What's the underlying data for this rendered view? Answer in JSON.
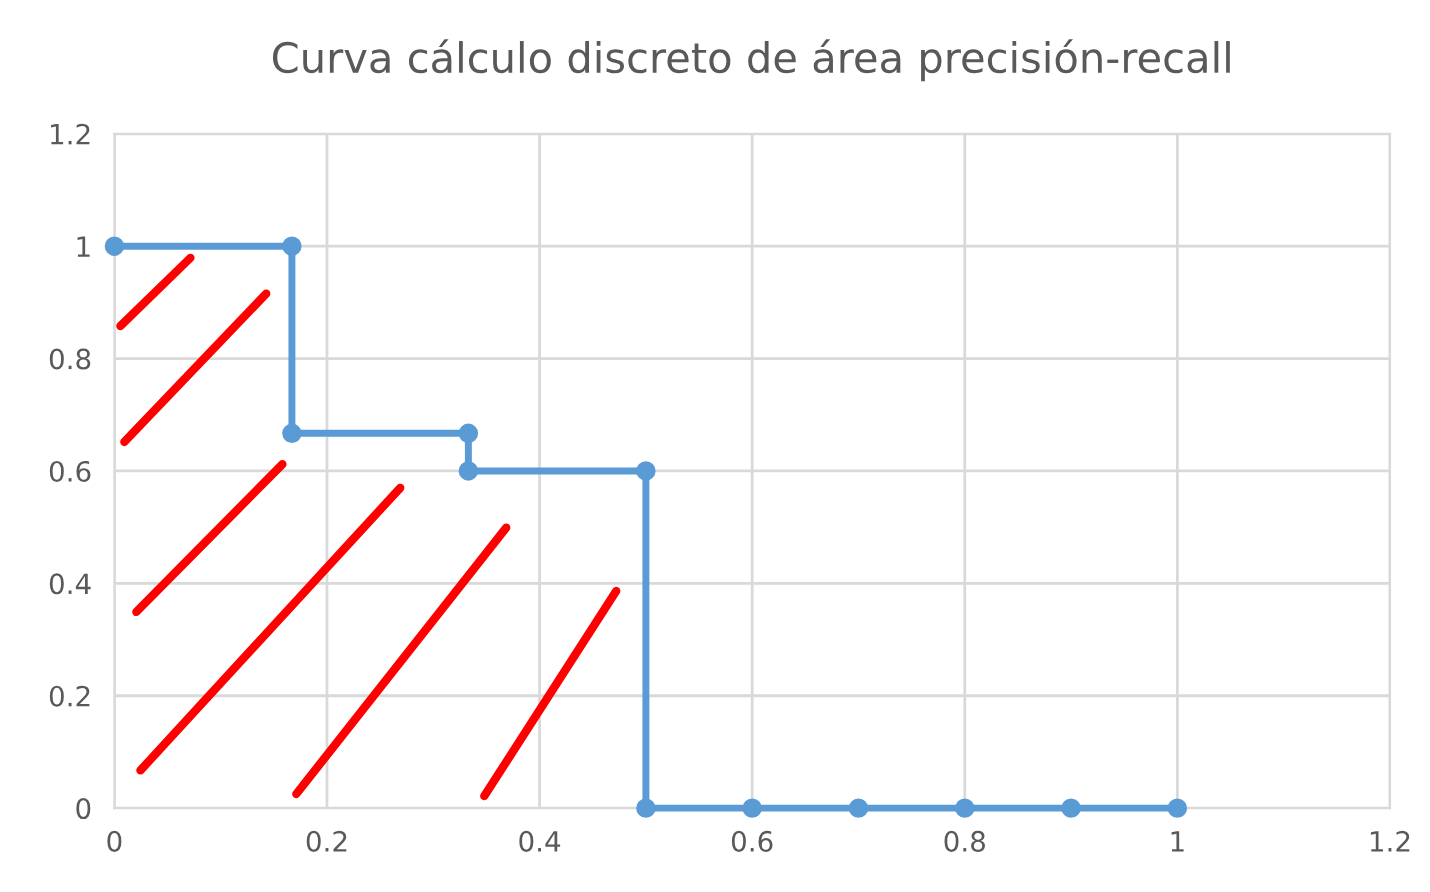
{
  "chart_data": {
    "type": "line",
    "title": "Curva cálculo discreto de área precisión-recall",
    "series": [
      {
        "color": "#5b9bd5",
        "x": [
          0,
          0.167,
          0.167,
          0.333,
          0.333,
          0.5,
          0.5,
          0.6,
          0.7,
          0.8,
          0.9,
          1
        ],
        "values": [
          1,
          1,
          0.667,
          0.667,
          0.6,
          0.6,
          0,
          0,
          0,
          0,
          0,
          0
        ]
      }
    ],
    "xlim": [
      0,
      1.2
    ],
    "ylim": [
      0,
      1.2
    ],
    "xticks": [
      0,
      0.2,
      0.4,
      0.6,
      0.8,
      1,
      1.2
    ],
    "yticks": [
      0,
      0.2,
      0.4,
      0.6,
      0.8,
      1,
      1.2
    ],
    "grid": true,
    "marker": "circle",
    "line_style": "solid"
  }
}
